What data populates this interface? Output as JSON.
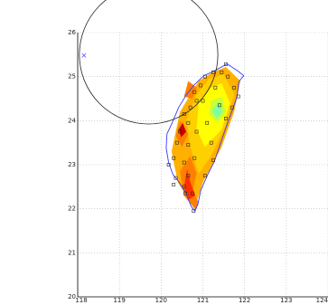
{
  "chart_data": {
    "type": "scatter",
    "title": "",
    "xlabel": "",
    "ylabel": "",
    "xlim": [
      118,
      124
    ],
    "ylim": [
      20,
      26
    ],
    "x_ticks": [
      "118",
      "119",
      "120",
      "121",
      "122",
      "123",
      "124"
    ],
    "y_ticks": [
      "20",
      "21",
      "22",
      "23",
      "24",
      "25",
      "26"
    ],
    "grid": true,
    "circle": {
      "center": [
        119.7,
        25.5
      ],
      "radius": 1.66
    },
    "marker": {
      "x": 118.15,
      "y": 25.48,
      "symbol": "x",
      "color": "#5050ff"
    },
    "coastline": [
      [
        121.58,
        25.29
      ],
      [
        121.85,
        25.12
      ],
      [
        121.98,
        25.02
      ],
      [
        121.86,
        24.88
      ],
      [
        121.82,
        24.55
      ],
      [
        121.73,
        24.3
      ],
      [
        121.62,
        24.02
      ],
      [
        121.52,
        23.75
      ],
      [
        121.4,
        23.42
      ],
      [
        121.28,
        23.08
      ],
      [
        121.12,
        22.78
      ],
      [
        120.95,
        22.42
      ],
      [
        120.88,
        22.1
      ],
      [
        120.81,
        21.95
      ],
      [
        120.72,
        22.05
      ],
      [
        120.6,
        22.35
      ],
      [
        120.42,
        22.62
      ],
      [
        120.28,
        22.78
      ],
      [
        120.18,
        23.05
      ],
      [
        120.12,
        23.38
      ],
      [
        120.14,
        23.7
      ],
      [
        120.25,
        23.92
      ],
      [
        120.42,
        24.3
      ],
      [
        120.6,
        24.58
      ],
      [
        120.78,
        24.8
      ],
      [
        121.02,
        25.02
      ],
      [
        121.28,
        25.13
      ],
      [
        121.58,
        25.29
      ]
    ],
    "contour_colors": [
      "#ffb000",
      "#ffd000",
      "#ffff00",
      "#c8ff38",
      "#7fffa0",
      "#ff8000",
      "#ff3000",
      "#cc0000"
    ],
    "contour_regions": [
      {
        "level": 0,
        "points": [
          [
            121.55,
            25.22
          ],
          [
            121.9,
            24.9
          ],
          [
            121.75,
            24.2
          ],
          [
            121.45,
            23.4
          ],
          [
            121.0,
            22.6
          ],
          [
            120.8,
            22.0
          ],
          [
            120.4,
            22.6
          ],
          [
            120.25,
            23.3
          ],
          [
            120.45,
            24.2
          ],
          [
            120.9,
            24.9
          ],
          [
            121.2,
            25.08
          ]
        ]
      },
      {
        "level": 1,
        "points": [
          [
            121.5,
            25.05
          ],
          [
            121.75,
            24.6
          ],
          [
            121.55,
            23.9
          ],
          [
            121.2,
            23.2
          ],
          [
            120.9,
            22.8
          ],
          [
            120.7,
            23.4
          ],
          [
            120.6,
            24.0
          ],
          [
            120.85,
            24.6
          ],
          [
            121.15,
            24.95
          ]
        ]
      },
      {
        "level": 2,
        "points": [
          [
            121.45,
            24.85
          ],
          [
            121.65,
            24.4
          ],
          [
            121.45,
            23.8
          ],
          [
            121.05,
            23.4
          ],
          [
            120.85,
            23.8
          ],
          [
            120.9,
            24.4
          ],
          [
            121.2,
            24.75
          ]
        ]
      },
      {
        "level": 3,
        "points": [
          [
            121.45,
            24.55
          ],
          [
            121.55,
            24.2
          ],
          [
            121.35,
            23.95
          ],
          [
            121.15,
            24.15
          ],
          [
            121.2,
            24.45
          ]
        ]
      },
      {
        "level": 4,
        "points": [
          [
            121.38,
            24.42
          ],
          [
            121.48,
            24.2
          ],
          [
            121.33,
            24.05
          ],
          [
            121.22,
            24.22
          ]
        ]
      },
      {
        "level": 5,
        "points": [
          [
            120.75,
            22.4
          ],
          [
            120.9,
            22.15
          ],
          [
            120.82,
            21.98
          ],
          [
            120.55,
            22.3
          ],
          [
            120.45,
            22.85
          ],
          [
            120.7,
            23.2
          ],
          [
            120.85,
            22.8
          ]
        ]
      },
      {
        "level": 6,
        "points": [
          [
            120.7,
            22.6
          ],
          [
            120.82,
            22.3
          ],
          [
            120.65,
            22.2
          ],
          [
            120.55,
            22.5
          ],
          [
            120.62,
            22.9
          ]
        ]
      },
      {
        "level": 5,
        "points": [
          [
            120.45,
            24.0
          ],
          [
            120.65,
            23.7
          ],
          [
            120.5,
            23.4
          ],
          [
            120.35,
            23.65
          ]
        ]
      },
      {
        "level": 7,
        "points": [
          [
            120.52,
            23.95
          ],
          [
            120.6,
            23.75
          ],
          [
            120.48,
            23.62
          ],
          [
            120.42,
            23.8
          ]
        ]
      },
      {
        "level": 5,
        "points": [
          [
            120.65,
            24.9
          ],
          [
            120.85,
            24.75
          ],
          [
            120.75,
            24.5
          ],
          [
            120.55,
            24.55
          ]
        ]
      }
    ],
    "stations": [
      {
        "x": 121.55,
        "y": 25.28
      },
      {
        "x": 121.45,
        "y": 25.1
      },
      {
        "x": 121.25,
        "y": 25.1
      },
      {
        "x": 121.05,
        "y": 25.0
      },
      {
        "x": 121.6,
        "y": 25.0
      },
      {
        "x": 121.75,
        "y": 24.75
      },
      {
        "x": 121.85,
        "y": 24.55
      },
      {
        "x": 121.7,
        "y": 24.3
      },
      {
        "x": 121.4,
        "y": 24.35
      },
      {
        "x": 120.95,
        "y": 24.8
      },
      {
        "x": 120.8,
        "y": 24.65
      },
      {
        "x": 120.85,
        "y": 24.45
      },
      {
        "x": 120.7,
        "y": 24.3
      },
      {
        "x": 120.55,
        "y": 24.15
      },
      {
        "x": 120.65,
        "y": 23.95
      },
      {
        "x": 120.85,
        "y": 23.75
      },
      {
        "x": 121.1,
        "y": 23.95
      },
      {
        "x": 121.55,
        "y": 24.05
      },
      {
        "x": 121.2,
        "y": 23.5
      },
      {
        "x": 120.45,
        "y": 23.75
      },
      {
        "x": 120.38,
        "y": 23.5
      },
      {
        "x": 120.65,
        "y": 23.45
      },
      {
        "x": 121.25,
        "y": 23.1
      },
      {
        "x": 120.8,
        "y": 23.15
      },
      {
        "x": 120.55,
        "y": 23.05
      },
      {
        "x": 120.3,
        "y": 23.15
      },
      {
        "x": 120.18,
        "y": 23.0
      },
      {
        "x": 121.05,
        "y": 22.75
      },
      {
        "x": 120.65,
        "y": 22.75
      },
      {
        "x": 120.35,
        "y": 22.7
      },
      {
        "x": 120.3,
        "y": 22.55
      },
      {
        "x": 120.55,
        "y": 22.5
      },
      {
        "x": 120.75,
        "y": 22.35
      },
      {
        "x": 120.58,
        "y": 22.35
      },
      {
        "x": 120.78,
        "y": 21.95
      },
      {
        "x": 121.0,
        "y": 24.45
      },
      {
        "x": 121.3,
        "y": 24.75
      }
    ]
  }
}
